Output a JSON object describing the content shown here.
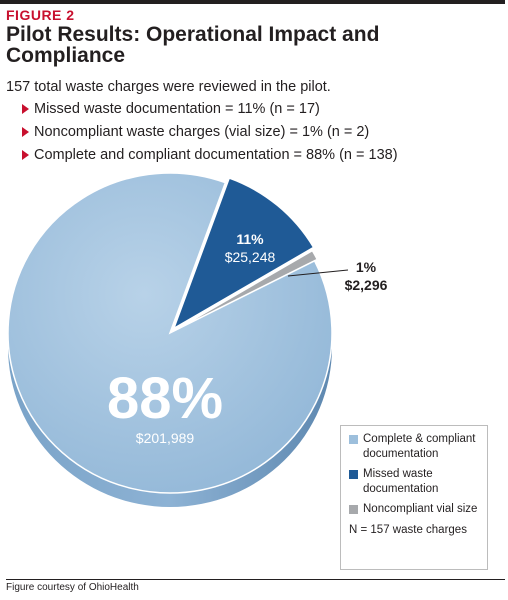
{
  "figure_label": "FIGURE 2",
  "title": "Pilot Results: Operational Impact and Compliance",
  "intro": "157 total waste charges were reviewed in the pilot.",
  "bullets": [
    "Missed waste documentation = 11% (n = 17)",
    "Noncompliant waste charges (vial size) = 1% (n = 2)",
    "Complete and compliant documentation = 88% (n = 138)"
  ],
  "colors": {
    "accent": "#c8102e",
    "complete": "#9dbfdc",
    "missed": "#1f5a96",
    "noncompliant": "#a7a9ac"
  },
  "chart_data": {
    "type": "pie",
    "title": "Pilot Results: Operational Impact and Compliance",
    "slices": [
      {
        "name": "Complete & compliant documentation",
        "percent": 88,
        "percent_label": "88%",
        "amount_label": "$201,989",
        "n": 138,
        "color": "#9dbfdc"
      },
      {
        "name": "Missed waste documentation",
        "percent": 11,
        "percent_label": "11%",
        "amount_label": "$25,248",
        "n": 17,
        "color": "#1f5a96"
      },
      {
        "name": "Noncompliant vial size",
        "percent": 1,
        "percent_label": "1%",
        "amount_label": "$2,296",
        "n": 2,
        "color": "#a7a9ac"
      }
    ],
    "legend_placement": "bottom-right",
    "legend_note": "N = 157 waste charges"
  },
  "credit": "Figure courtesy of OhioHealth"
}
